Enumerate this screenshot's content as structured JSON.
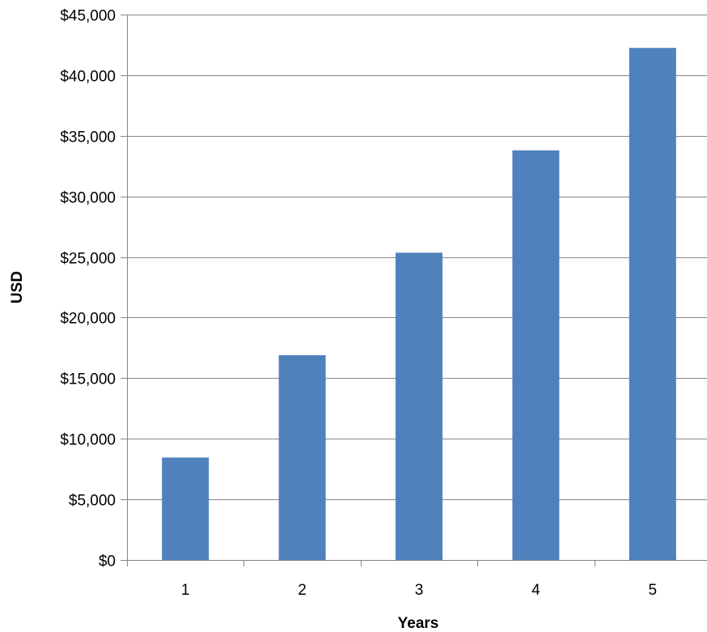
{
  "chart_data": {
    "type": "bar",
    "title": "",
    "xlabel": "Years",
    "ylabel": "USD",
    "categories": [
      "1",
      "2",
      "3",
      "4",
      "5"
    ],
    "values": [
      8450,
      16900,
      25350,
      33800,
      42250
    ],
    "ylim": [
      0,
      45000
    ],
    "yticks": [
      0,
      5000,
      10000,
      15000,
      20000,
      25000,
      30000,
      35000,
      40000,
      45000
    ],
    "ytick_labels": [
      "$0",
      "$5,000",
      "$10,000",
      "$15,000",
      "$20,000",
      "$25,000",
      "$30,000",
      "$35,000",
      "$40,000",
      "$45,000"
    ],
    "grid": true,
    "legend": "none",
    "bar_color": "#4F81BD",
    "grid_color": "#868686"
  }
}
